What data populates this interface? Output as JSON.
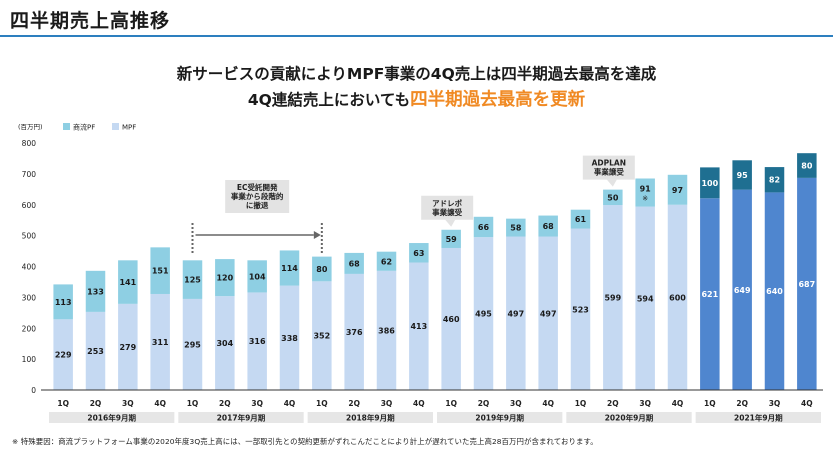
{
  "page_title": "四半期売上高推移",
  "headline": {
    "line1": "新サービスの貢献によりMPF事業の4Q売上は四半期過去最高を達成",
    "line2_prefix": "4Q連結売上においても",
    "line2_accent": "四半期過去最高を更新"
  },
  "footnote": "※ 特殊要因：商流プラットフォーム事業の2020年度3Q売上高には、一部取引先との契約更新がずれこんだことにより計上が遅れていた売上高28百万円が含まれております。",
  "colors": {
    "mpf_light": "#c5d9f2",
    "pf_light": "#8ecfe3",
    "mpf_dark": "#4f86cf",
    "pf_dark": "#1f6f91",
    "axis": "#333333",
    "year_box": "#e6e6e6",
    "callout": "#e3e3e3",
    "accent": "#f08a24"
  },
  "chart_data": {
    "type": "bar",
    "stacked": true,
    "unit_label": "(百万円)",
    "ylim": [
      0,
      800
    ],
    "yticks": [
      0,
      100,
      200,
      300,
      400,
      500,
      600,
      700,
      800
    ],
    "legend": {
      "position": "top-left",
      "items": [
        "商流PF",
        "MPF"
      ]
    },
    "categories": [
      "1Q",
      "2Q",
      "3Q",
      "4Q",
      "1Q",
      "2Q",
      "3Q",
      "4Q",
      "1Q",
      "2Q",
      "3Q",
      "4Q",
      "1Q",
      "2Q",
      "3Q",
      "4Q",
      "1Q",
      "2Q",
      "3Q",
      "4Q",
      "1Q",
      "2Q",
      "3Q",
      "4Q"
    ],
    "series": [
      {
        "name": "MPF",
        "values": [
          229,
          253,
          279,
          311,
          295,
          304,
          316,
          338,
          352,
          376,
          386,
          413,
          460,
          495,
          497,
          497,
          523,
          599,
          594,
          600,
          621,
          649,
          640,
          687
        ]
      },
      {
        "name": "商流PF",
        "values": [
          113,
          133,
          141,
          151,
          125,
          120,
          104,
          114,
          80,
          68,
          62,
          63,
          59,
          66,
          58,
          68,
          61,
          50,
          91,
          97,
          100,
          95,
          82,
          80
        ]
      }
    ],
    "year_groups": [
      "2016年9月期",
      "2017年9月期",
      "2018年9月期",
      "2019年9月期",
      "2020年9月期",
      "2021年9月期"
    ],
    "highlight_year_index": 5,
    "annotations": [
      {
        "type": "callout",
        "text_lines": [
          "EC受託開発",
          "事業から段階的",
          "に撤退"
        ],
        "from_index": 4,
        "to_index": 8
      },
      {
        "type": "callout",
        "text_lines": [
          "アドレポ",
          "事業譲受"
        ],
        "at_index": 12
      },
      {
        "type": "callout",
        "text_lines": [
          "ADPLAN",
          "事業譲受"
        ],
        "at_index": 17
      },
      {
        "type": "note_mark",
        "text": "※",
        "at_index": 18
      }
    ]
  }
}
